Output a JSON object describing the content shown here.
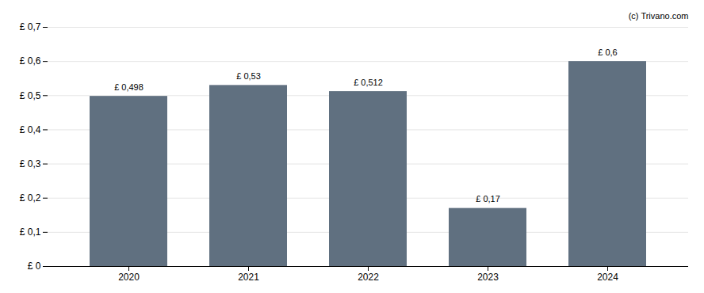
{
  "chart_data": {
    "type": "bar",
    "categories": [
      "2020",
      "2021",
      "2022",
      "2023",
      "2024"
    ],
    "values": [
      0.498,
      0.53,
      0.512,
      0.17,
      0.6
    ],
    "value_labels": [
      "£ 0,498",
      "£ 0,53",
      "£ 0,512",
      "£ 0,17",
      "£ 0,6"
    ],
    "color": "#607080",
    "ylim": [
      0,
      0.7
    ],
    "yticks": [
      {
        "value": 0.0,
        "label": "£ 0"
      },
      {
        "value": 0.1,
        "label": "£ 0,1"
      },
      {
        "value": 0.2,
        "label": "£ 0,2"
      },
      {
        "value": 0.3,
        "label": "£ 0,3"
      },
      {
        "value": 0.4,
        "label": "£ 0,4"
      },
      {
        "value": 0.5,
        "label": "£ 0,5"
      },
      {
        "value": 0.6,
        "label": "£ 0,6"
      },
      {
        "value": 0.7,
        "label": "£ 0,7"
      }
    ],
    "grid": true,
    "data_labels": true,
    "annotations": [
      "(c) Trivano.com"
    ]
  }
}
